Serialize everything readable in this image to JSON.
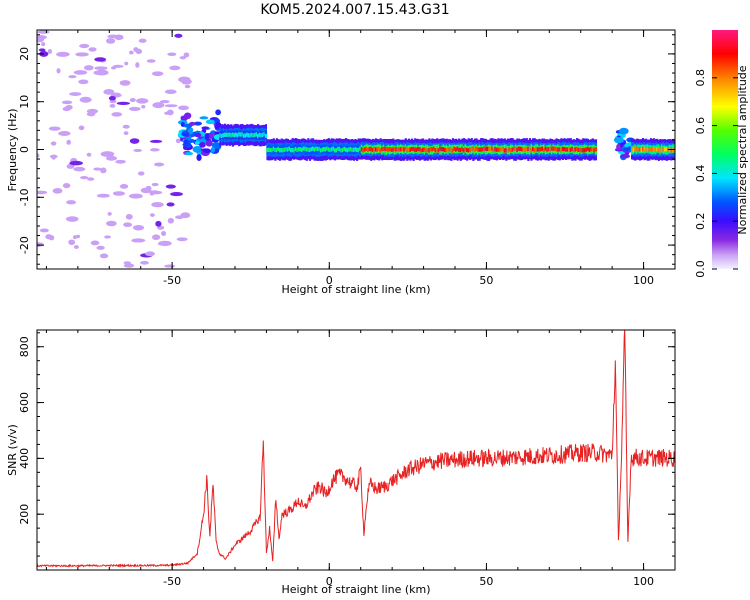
{
  "title": "KOM5.2024.007.15.43.G31",
  "colors": {
    "snr_line": "#e62222",
    "frame": "#000000",
    "background": "#ffffff"
  },
  "chart_data": [
    {
      "type": "heatmap",
      "xlabel": "Height of straight line (km)",
      "ylabel": "Frequency (Hz)",
      "xlim": [
        -93,
        110
      ],
      "ylim": [
        -25,
        25
      ],
      "x_ticks": [
        "-50",
        "0",
        "50",
        "100"
      ],
      "y_ticks": [
        "-20",
        "-10",
        "0",
        "10",
        "20"
      ],
      "colorbar": {
        "label": "Normalized spectral amplitude",
        "range": [
          0,
          1
        ],
        "ticks": [
          "0.0",
          "0.2",
          "0.4",
          "0.6",
          "0.8"
        ],
        "colormap": "rainbow (purple → blue → cyan → green → yellow → red → pink)"
      },
      "features": [
        {
          "description": "scattered low-amplitude noise",
          "x_range": [
            -93,
            -45
          ],
          "freq_range": [
            -25,
            25
          ],
          "amplitude": 0.05
        },
        {
          "description": "signal onset cluster",
          "x_range": [
            -47,
            -35
          ],
          "freq_range": [
            -3,
            9
          ],
          "amplitude": 0.3
        },
        {
          "description": "ridge",
          "x_range": [
            -35,
            -20
          ],
          "freq_center": 3,
          "amplitude": 0.45
        },
        {
          "description": "ridge",
          "x_range": [
            -20,
            10
          ],
          "freq_center": 0,
          "amplitude": 0.5
        },
        {
          "description": "strong carrier ridge",
          "x_range": [
            10,
            85
          ],
          "freq_center": 0,
          "amplitude": 0.95
        },
        {
          "description": "disturbance",
          "x_range": [
            92,
            96
          ],
          "freq_range": [
            -3,
            5
          ],
          "amplitude": 0.3
        },
        {
          "description": "carrier ridge",
          "x_range": [
            96,
            110
          ],
          "freq_center": 0,
          "amplitude": 0.85
        }
      ]
    },
    {
      "type": "line",
      "xlabel": "Height of straight line (km)",
      "ylabel": "SNR (v/v)",
      "xlim": [
        -93,
        110
      ],
      "ylim": [
        0,
        860
      ],
      "x_ticks": [
        "-50",
        "0",
        "50",
        "100"
      ],
      "y_ticks": [
        "200",
        "400",
        "600",
        "800"
      ],
      "series": [
        {
          "x": [
            -93,
            -80,
            -70,
            -60,
            -50,
            -45,
            -42,
            -40,
            -39,
            -38,
            -37,
            -36,
            -35,
            -33,
            -30,
            -27,
            -25,
            -22,
            -21,
            -20,
            -19,
            -18,
            -17,
            -16,
            -15,
            -13,
            -11,
            -10,
            -8,
            -5,
            -3,
            -1,
            1,
            3,
            5,
            7,
            9,
            10,
            11,
            12,
            13,
            15,
            18,
            20,
            23,
            25,
            28,
            30,
            33,
            35,
            40,
            45,
            50,
            55,
            60,
            65,
            70,
            75,
            80,
            85,
            88,
            90,
            91,
            92,
            93,
            94,
            95,
            96,
            97,
            100,
            105,
            110
          ],
          "y": [
            15,
            15,
            16,
            16,
            17,
            25,
            60,
            200,
            330,
            120,
            310,
            100,
            60,
            40,
            90,
            120,
            140,
            190,
            460,
            60,
            150,
            30,
            260,
            110,
            200,
            210,
            230,
            250,
            220,
            280,
            300,
            270,
            320,
            340,
            330,
            310,
            300,
            360,
            130,
            250,
            310,
            290,
            300,
            320,
            340,
            360,
            370,
            380,
            385,
            390,
            395,
            400,
            400,
            402,
            405,
            408,
            410,
            415,
            420,
            420,
            415,
            410,
            750,
            100,
            420,
            850,
            100,
            400,
            405,
            400,
            402,
            400
          ]
        }
      ]
    }
  ]
}
